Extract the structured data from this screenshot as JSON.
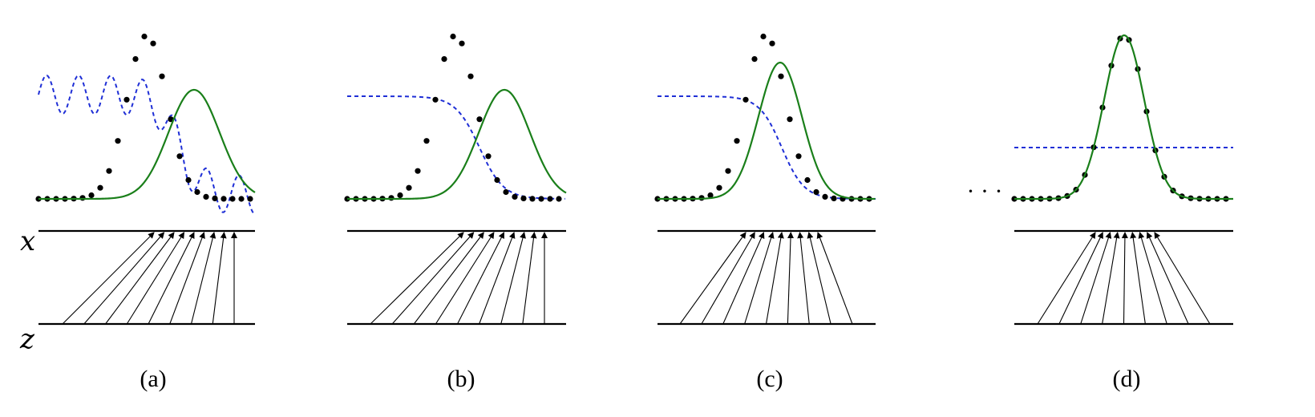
{
  "labels": {
    "x_axis": "x",
    "z_axis": "z",
    "ellipsis": "· · ·"
  },
  "panels": [
    {
      "label": "(a)"
    },
    {
      "label": "(b)"
    },
    {
      "label": "(c)"
    },
    {
      "label": "(d)"
    }
  ],
  "colors": {
    "data_distribution": "#000000",
    "generative_distribution": "#1a7f1a",
    "discriminator": "#1f2fd6",
    "mapping_arrows": "#000000"
  }
}
